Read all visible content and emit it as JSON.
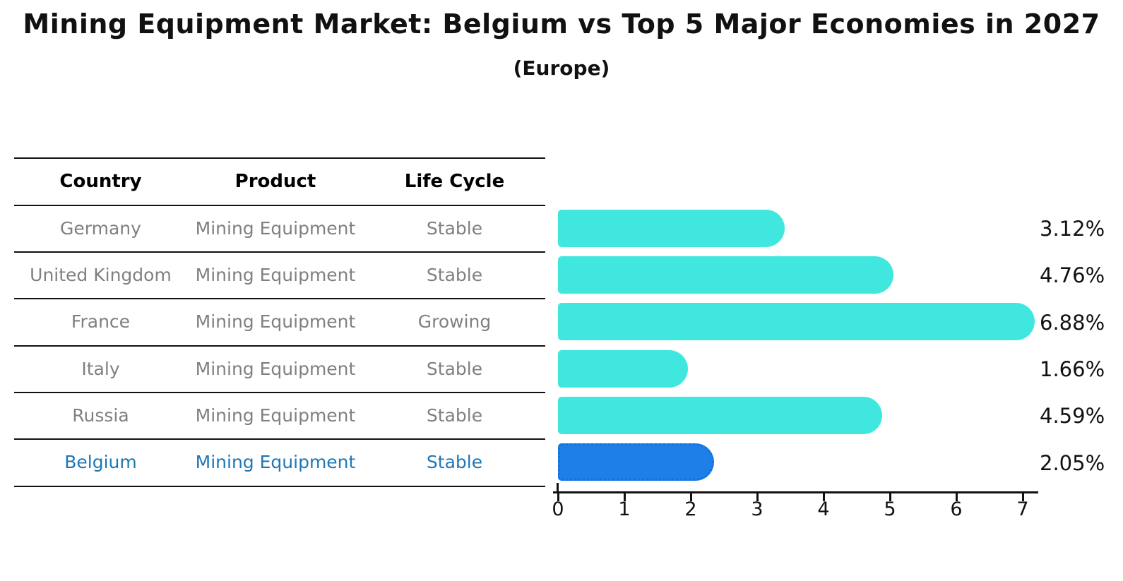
{
  "title": "Mining Equipment Market: Belgium vs Top 5 Major Economies in 2027",
  "subtitle": "(Europe)",
  "table": {
    "headers": [
      "Country",
      "Product",
      "Life Cycle"
    ],
    "rows": [
      {
        "country": "Germany",
        "product": "Mining Equipment",
        "life_cycle": "Stable",
        "share_label": "3.12%",
        "highlight": false
      },
      {
        "country": "United Kingdom",
        "product": "Mining Equipment",
        "life_cycle": "Stable",
        "share_label": "4.76%",
        "highlight": false
      },
      {
        "country": "France",
        "product": "Mining Equipment",
        "life_cycle": "Growing",
        "share_label": "6.88%",
        "highlight": false
      },
      {
        "country": "Italy",
        "product": "Mining Equipment",
        "life_cycle": "Stable",
        "share_label": "1.66%",
        "highlight": false
      },
      {
        "country": "Russia",
        "product": "Mining Equipment",
        "life_cycle": "Stable",
        "share_label": "4.59%",
        "highlight": false
      },
      {
        "country": "Belgium",
        "product": "Mining Equipment",
        "life_cycle": "Stable",
        "share_label": "2.05%",
        "highlight": true
      }
    ]
  },
  "chart_data": {
    "type": "bar",
    "orientation": "horizontal",
    "title": "Mining Equipment Market: Belgium vs Top 5 Major Economies in 2027",
    "subtitle": "(Europe)",
    "categories": [
      "Germany",
      "United Kingdom",
      "France",
      "Italy",
      "Russia",
      "Belgium"
    ],
    "values": [
      3.12,
      4.76,
      6.88,
      1.66,
      4.59,
      2.05
    ],
    "value_labels": [
      "3.12%",
      "4.76%",
      "6.88%",
      "1.66%",
      "4.59%",
      "2.05%"
    ],
    "xlabel": "",
    "ylabel": "",
    "xlim": [
      0,
      7.3
    ],
    "x_ticks": [
      0,
      1,
      2,
      3,
      4,
      5,
      6,
      7
    ],
    "grid": false,
    "legend": "none",
    "highlight_index": 5
  },
  "colors": {
    "bar": "#40e7df",
    "highlight_bar": "#1e7fe8",
    "highlight_border": "#1570dd",
    "highlight_text": "#1f77b4",
    "row_text": "#808080",
    "header_text": "#000000",
    "axis": "#111111"
  }
}
